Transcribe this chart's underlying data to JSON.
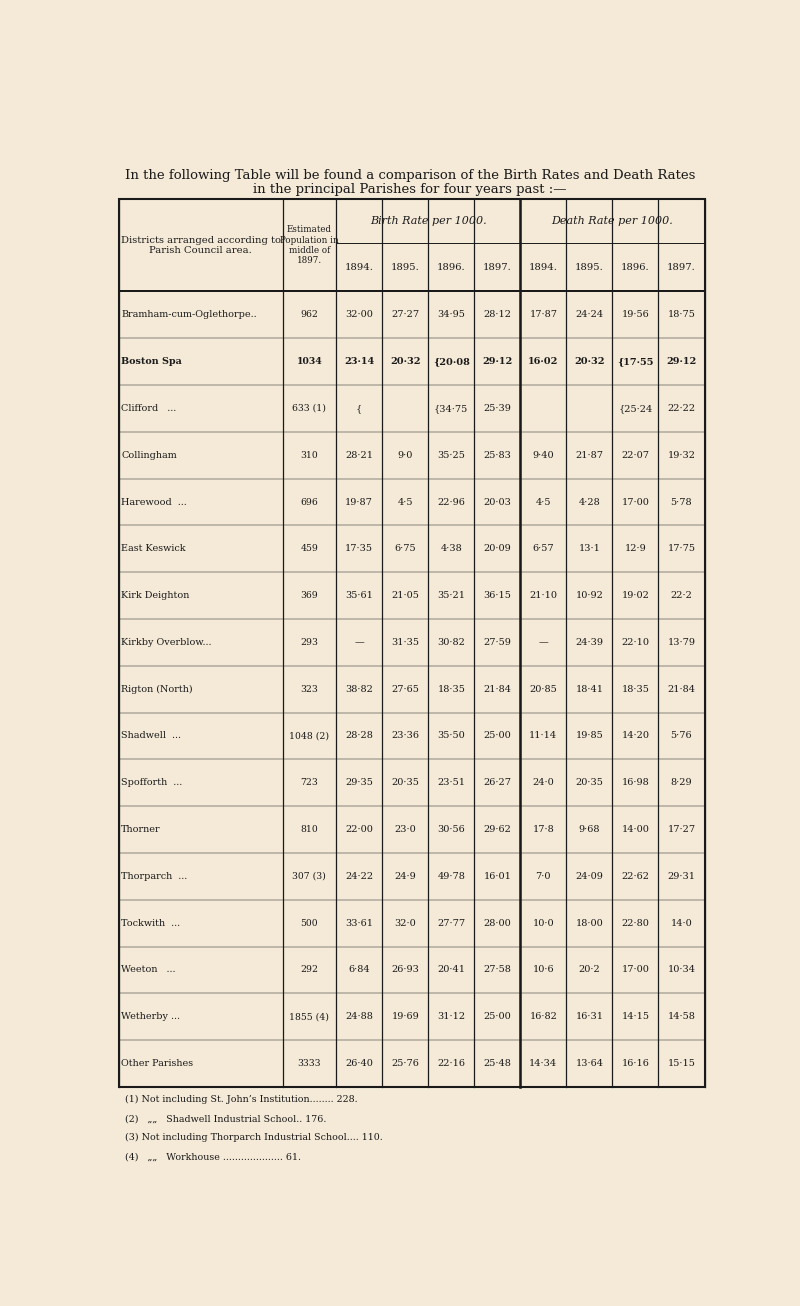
{
  "title_line1": "In the following Table will be found a comparison of the Birth Rates and Death Rates",
  "title_line2": "in the principal Parishes for four years past :—",
  "bg_color": "#f5ead8",
  "text_color": "#1a1a1a",
  "districts": [
    "Bramham-cum-Oglethorpe..",
    "Boston Spa",
    "Clifford   ...",
    "Collingham",
    "Harewood  ...",
    "East Keswick",
    "Kirk Deighton",
    "Kirkby Overblow...",
    "Rigton (North)",
    "Shadwell  ...",
    "Spofforth  ...",
    "Thorner",
    "Thorparch  ...",
    "Tockwith  ...",
    "Weeton   ...",
    "Wetherby ...",
    "Other Parishes"
  ],
  "population": [
    "962",
    "1034",
    "633 (1)",
    "310",
    "696",
    "459",
    "369",
    "293",
    "323",
    "1048 (2)",
    "723",
    "810",
    "307 (3)",
    "500",
    "292",
    "1855 (4)",
    "3333"
  ],
  "birth_1894": [
    "32·00",
    "23·14",
    "{",
    "28·21",
    "19·87",
    "17·35",
    "35·61",
    "—",
    "38·82",
    "28·28",
    "29·35",
    "22·00",
    "24·22",
    "33·61",
    "6·84",
    "24·88",
    "26·40"
  ],
  "birth_1895": [
    "27·27",
    "20·32",
    "",
    "9·0",
    "4·5",
    "6·75",
    "21·05",
    "31·35",
    "27·65",
    "23·36",
    "20·35",
    "23·0",
    "24·9",
    "32·0",
    "26·93",
    "19·69",
    "25·76"
  ],
  "birth_1896": [
    "34·95",
    "{20·08",
    "{34·75",
    "35·25",
    "22·96",
    "4·38",
    "35·21",
    "30·82",
    "18·35",
    "35·50",
    "23·51",
    "30·56",
    "49·78",
    "27·77",
    "20·41",
    "31·12",
    "22·16"
  ],
  "birth_1897": [
    "28·12",
    "29·12",
    "25·39",
    "25·83",
    "20·03",
    "20·09",
    "36·15",
    "27·59",
    "21·84",
    "25·00",
    "26·27",
    "29·62",
    "16·01",
    "28·00",
    "27·58",
    "25·00",
    "25·48"
  ],
  "death_1894": [
    "17·87",
    "16·02",
    "",
    "9·40",
    "4·5",
    "6·57",
    "21·10",
    "—",
    "20·85",
    "11·14",
    "24·0",
    "17·8",
    "7·0",
    "10·0",
    "10·6",
    "16·82",
    "14·34"
  ],
  "death_1895": [
    "24·24",
    "20·32",
    "",
    "21·87",
    "4·28",
    "13·1",
    "10·92",
    "24·39",
    "18·41",
    "19·85",
    "20·35",
    "9·68",
    "24·09",
    "18·00",
    "20·2",
    "16·31",
    "13·64"
  ],
  "death_1896": [
    "19·56",
    "{17·55",
    "{25·24",
    "22·07",
    "17·00",
    "12·9",
    "19·02",
    "22·10",
    "18·35",
    "14·20",
    "16·98",
    "14·00",
    "22·62",
    "22·80",
    "17·00",
    "14·15",
    "16·16"
  ],
  "death_1897": [
    "18·75",
    "29·12",
    "22·22",
    "19·32",
    "5·78",
    "17·75",
    "22·2",
    "13·79",
    "21·84",
    "5·76",
    "8·29",
    "17·27",
    "29·31",
    "14·0",
    "10·34",
    "14·58",
    "15·15"
  ],
  "footnotes": [
    "(1) Not including St. John’s Institution........ 228.",
    "(2)   „„   Shadwell Industrial School.. 176.",
    "(3) Not including Thorparch Industrial School.... 110.",
    "(4)   „„   Workhouse .................... 61."
  ],
  "bold_rows": [
    1
  ]
}
